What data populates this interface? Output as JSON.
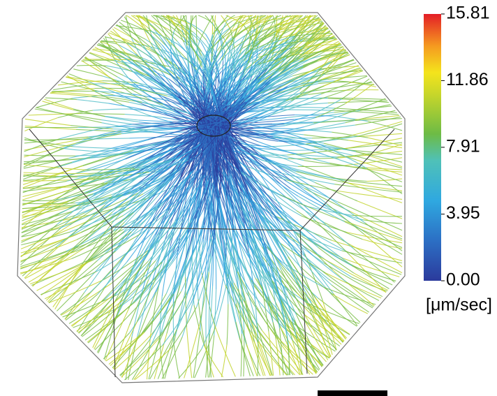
{
  "colorbar": {
    "ticks": [
      {
        "value": 0,
        "label": "0.00"
      },
      3.95,
      7.91,
      11.86,
      15.81
    ],
    "unit": "[μm/sec]"
  }
}
